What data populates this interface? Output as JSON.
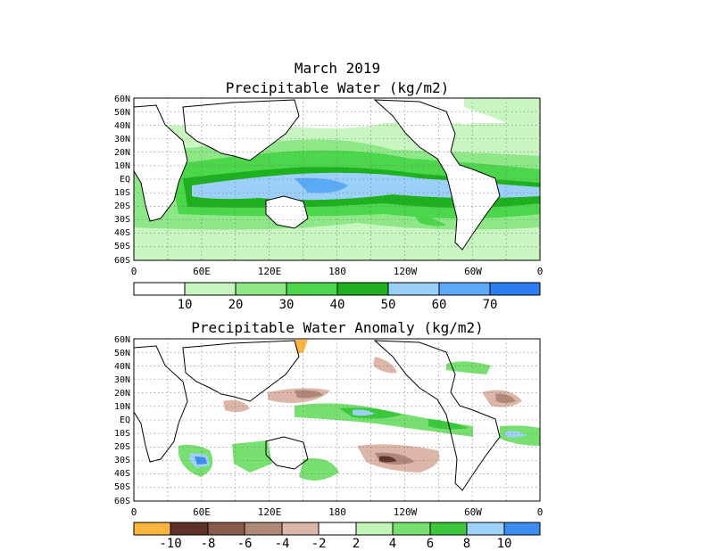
{
  "header": {
    "date": "March 2019",
    "title": "Precipitable Water (kg/m2)"
  },
  "anomaly_title": "Precipitable Water Anomaly (kg/m2)",
  "lat_labels": [
    "60N",
    "50N",
    "40N",
    "30N",
    "20N",
    "10N",
    "EQ",
    "10S",
    "20S",
    "30S",
    "40S",
    "50S",
    "60S"
  ],
  "lon_labels": [
    "0",
    "60E",
    "120E",
    "180",
    "120W",
    "60W",
    "0"
  ],
  "pw_colorbar": {
    "colors": [
      "#ffffff",
      "#c8f5c0",
      "#8ee888",
      "#4bd64b",
      "#1fb01f",
      "#9bd0fa",
      "#5aaaf5",
      "#2c7ef0"
    ],
    "labels": [
      "10",
      "20",
      "30",
      "40",
      "50",
      "60",
      "70"
    ]
  },
  "anom_colorbar": {
    "colors": [
      "#fdb53b",
      "#5e3226",
      "#8a5a4a",
      "#b08878",
      "#ddb6aa",
      "#ffffff",
      "#c2f5b8",
      "#78e070",
      "#3cc83c",
      "#9fd2fb",
      "#3c8cf2"
    ],
    "labels": [
      "-10",
      "-8",
      "-6",
      "-4",
      "-2",
      "2",
      "4",
      "6",
      "8",
      "10"
    ]
  }
}
